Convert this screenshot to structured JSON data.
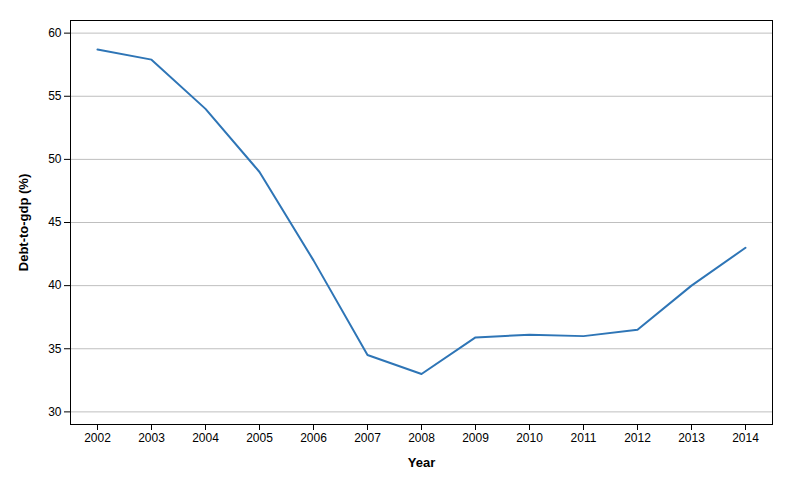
{
  "chart_data": {
    "type": "line",
    "xlabel": "Year",
    "ylabel": "Debt-to-gdp (%)",
    "x": [
      2002,
      2003,
      2004,
      2005,
      2006,
      2007,
      2008,
      2009,
      2010,
      2011,
      2012,
      2013,
      2014
    ],
    "values": [
      58.7,
      57.9,
      54.0,
      49.0,
      42.0,
      34.5,
      33.0,
      35.9,
      36.1,
      36.0,
      36.5,
      40.0,
      43.0
    ],
    "color": "#2E75B6",
    "xlim": [
      2001.5,
      2014.5
    ],
    "xticks": [
      2002,
      2003,
      2004,
      2005,
      2006,
      2007,
      2008,
      2009,
      2010,
      2011,
      2012,
      2013,
      2014
    ],
    "ylim": [
      29,
      61
    ],
    "yticks": [
      30,
      35,
      40,
      45,
      50,
      55,
      60
    ],
    "grid": "y"
  }
}
